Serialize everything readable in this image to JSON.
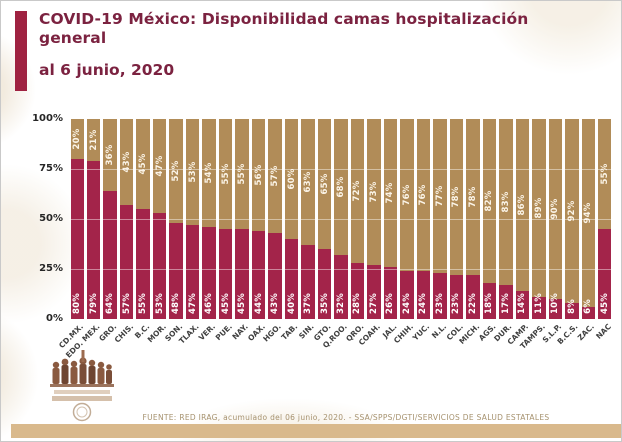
{
  "header": {
    "title": "COVID-19 México: Disponibilidad camas hospitalización general",
    "date": "al 6 junio, 2020"
  },
  "footer": {
    "source": "FUENTE: RED IRAG, acumulado del 06 junio, 2020. -  SSA/SPPS/DGTI/SERVICIOS DE SALUD ESTATALES"
  },
  "colors": {
    "accent_maroon": "#9F2241",
    "bar_maroon": "#A3244A",
    "bar_tan": "#B18C58",
    "title_text": "#7B2240",
    "bottom_strip": "#D9B98C",
    "source_text": "#A6926F"
  },
  "chart_data": {
    "type": "bar",
    "stacked": true,
    "legend": "none",
    "ylim": [
      0,
      100
    ],
    "yticks": [
      "100%",
      "75%",
      "50%",
      "25%",
      "0%"
    ],
    "gridlines": [
      25,
      50,
      75
    ],
    "categories": [
      "CD.MX.",
      "EDO. MEX.",
      "GRO.",
      "CHIS.",
      "B.C.",
      "MOR.",
      "SON.",
      "TLAX.",
      "VER.",
      "PUE.",
      "NAY.",
      "OAX.",
      "HGO.",
      "TAB.",
      "SIN.",
      "GTO.",
      "Q.ROO.",
      "QRO.",
      "COAH.",
      "JAL.",
      "CHIH.",
      "YUC.",
      "N.L.",
      "COL.",
      "MICH.",
      "AGS.",
      "DUR.",
      "CAMP.",
      "TAMPS.",
      "S.L.P.",
      "B.C.S.",
      "ZAC.",
      "NAC"
    ],
    "series": [
      {
        "name": "disponible (tan, etiqueta superior)",
        "color": "#B18C58",
        "values": [
          20,
          21,
          36,
          43,
          45,
          47,
          52,
          53,
          54,
          55,
          55,
          56,
          57,
          60,
          63,
          65,
          68,
          72,
          73,
          74,
          76,
          76,
          77,
          78,
          78,
          82,
          83,
          86,
          89,
          90,
          92,
          94,
          55
        ]
      },
      {
        "name": "ocupada (guinda, etiqueta inferior)",
        "color": "#A3244A",
        "values": [
          80,
          79,
          64,
          57,
          55,
          53,
          48,
          47,
          46,
          45,
          45,
          44,
          43,
          40,
          37,
          35,
          32,
          28,
          27,
          26,
          24,
          24,
          23,
          23,
          22,
          18,
          17,
          14,
          11,
          10,
          8,
          6,
          45
        ]
      }
    ]
  }
}
